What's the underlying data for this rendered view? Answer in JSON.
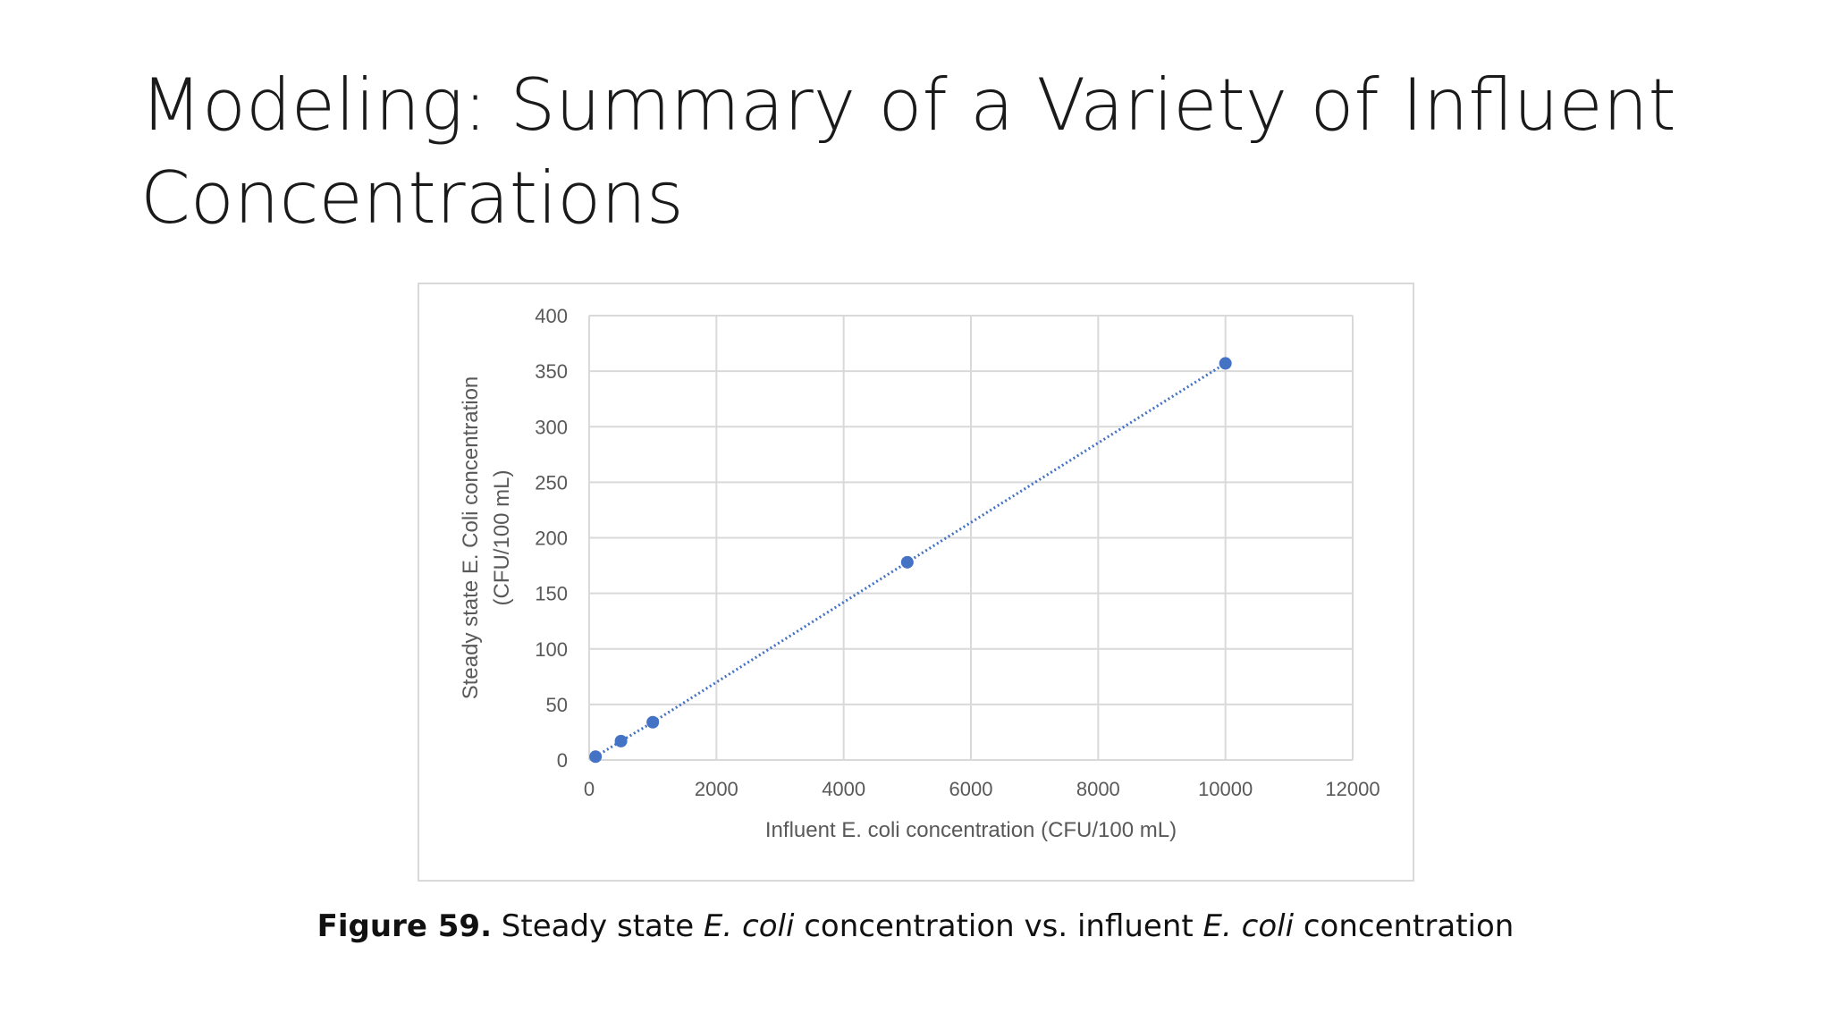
{
  "slide": {
    "title_line1": "Modeling: Summary of a Variety of Influent",
    "title_line2": "Concentrations"
  },
  "caption": {
    "label": "Figure 59.",
    "part1": " Steady state ",
    "ital1": "E. coli",
    "part2": " concentration vs. influent ",
    "ital2": "E. coli",
    "part3": " concentration"
  },
  "chart_data": {
    "type": "scatter",
    "xlabel": "Influent E. coli concentration (CFU/100 mL)",
    "ylabel_line1": "Steady state E. Coli concentration",
    "ylabel_line2": "(CFU/100 mL)",
    "xlim": [
      0,
      12000
    ],
    "ylim": [
      0,
      400
    ],
    "xticks": [
      0,
      2000,
      4000,
      6000,
      8000,
      10000,
      12000
    ],
    "yticks": [
      0,
      50,
      100,
      150,
      200,
      250,
      300,
      350,
      400
    ],
    "grid": true,
    "trendline": "linear, dotted",
    "series": [
      {
        "x": [
          100,
          500,
          1000,
          5000,
          10000
        ],
        "y": [
          3,
          17,
          34,
          178,
          357
        ],
        "color": "#4472c4"
      }
    ]
  }
}
